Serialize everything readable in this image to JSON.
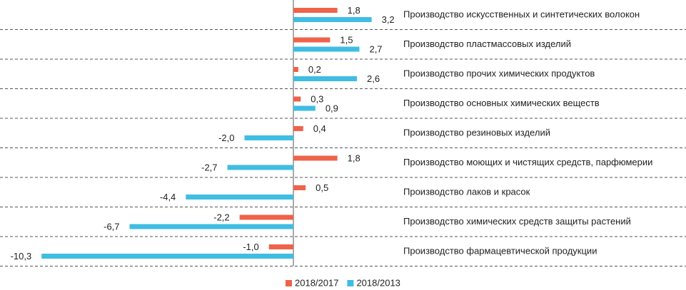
{
  "chart_data": {
    "type": "bar",
    "orientation": "horizontal",
    "categories": [
      "Производство искусственных и синтетических волокон",
      "Производство пластмассовых изделий",
      "Производство прочих химических продуктов",
      "Производство основных химических веществ",
      "Производство резиновых изделий",
      "Производство моющих и чистящих средств, парфюмерии",
      "Производство лаков и красок",
      "Производство химических средств защиты растений",
      "Производство фармацевтической продукции"
    ],
    "series": [
      {
        "name": "2018/2017",
        "color": "#ee6349",
        "label_color": "#d9432f",
        "values": [
          1.8,
          1.5,
          0.2,
          0.3,
          0.4,
          1.8,
          0.5,
          -2.2,
          -1.0
        ],
        "value_labels": [
          "1,8",
          "1,5",
          "0,2",
          "0,3",
          "0,4",
          "1,8",
          "0,5",
          "-2,2",
          "-1,0"
        ]
      },
      {
        "name": "2018/2013",
        "color": "#3fbde2",
        "label_color": "#1f3864",
        "values": [
          3.2,
          2.7,
          2.6,
          0.9,
          -2.0,
          -2.7,
          -4.4,
          -6.7,
          -10.3
        ],
        "value_labels": [
          "3,2",
          "2,7",
          "2,6",
          "0,9",
          "-2,0",
          "-2,7",
          "-4,4",
          "-6,7",
          "-10,3"
        ]
      }
    ],
    "xlim": [
      -12,
      4
    ],
    "legend": "bottom"
  }
}
